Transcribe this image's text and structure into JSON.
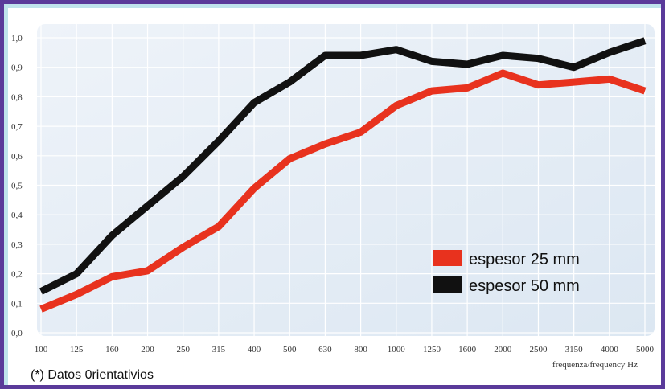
{
  "chart_data": {
    "type": "line",
    "x": [
      "100",
      "125",
      "160",
      "200",
      "250",
      "315",
      "400",
      "500",
      "630",
      "800",
      "1000",
      "1250",
      "1600",
      "2000",
      "2500",
      "3150",
      "4000",
      "5000"
    ],
    "xlabel": "frequenza/frequency Hz",
    "ylabel": "",
    "ylim": [
      0,
      1.0
    ],
    "yticks": [
      "0,0",
      "0,1",
      "0,2",
      "0,3",
      "0,4",
      "0,5",
      "0,6",
      "0,7",
      "0,8",
      "0,9",
      "1,0"
    ],
    "grid": true,
    "legend_position": "bottom-right",
    "series": [
      {
        "name": "espesor 25 mm",
        "color": "#e8321e",
        "values": [
          0.08,
          0.13,
          0.19,
          0.21,
          0.29,
          0.36,
          0.49,
          0.59,
          0.64,
          0.68,
          0.77,
          0.82,
          0.83,
          0.88,
          0.84,
          0.85,
          0.86,
          0.82
        ]
      },
      {
        "name": "espesor 50 mm",
        "color": "#111111",
        "values": [
          0.14,
          0.2,
          0.33,
          0.43,
          0.53,
          0.65,
          0.78,
          0.85,
          0.94,
          0.94,
          0.96,
          0.92,
          0.91,
          0.94,
          0.93,
          0.9,
          0.95,
          0.99
        ]
      }
    ]
  },
  "footnote": "(*) Datos 0rientativios"
}
